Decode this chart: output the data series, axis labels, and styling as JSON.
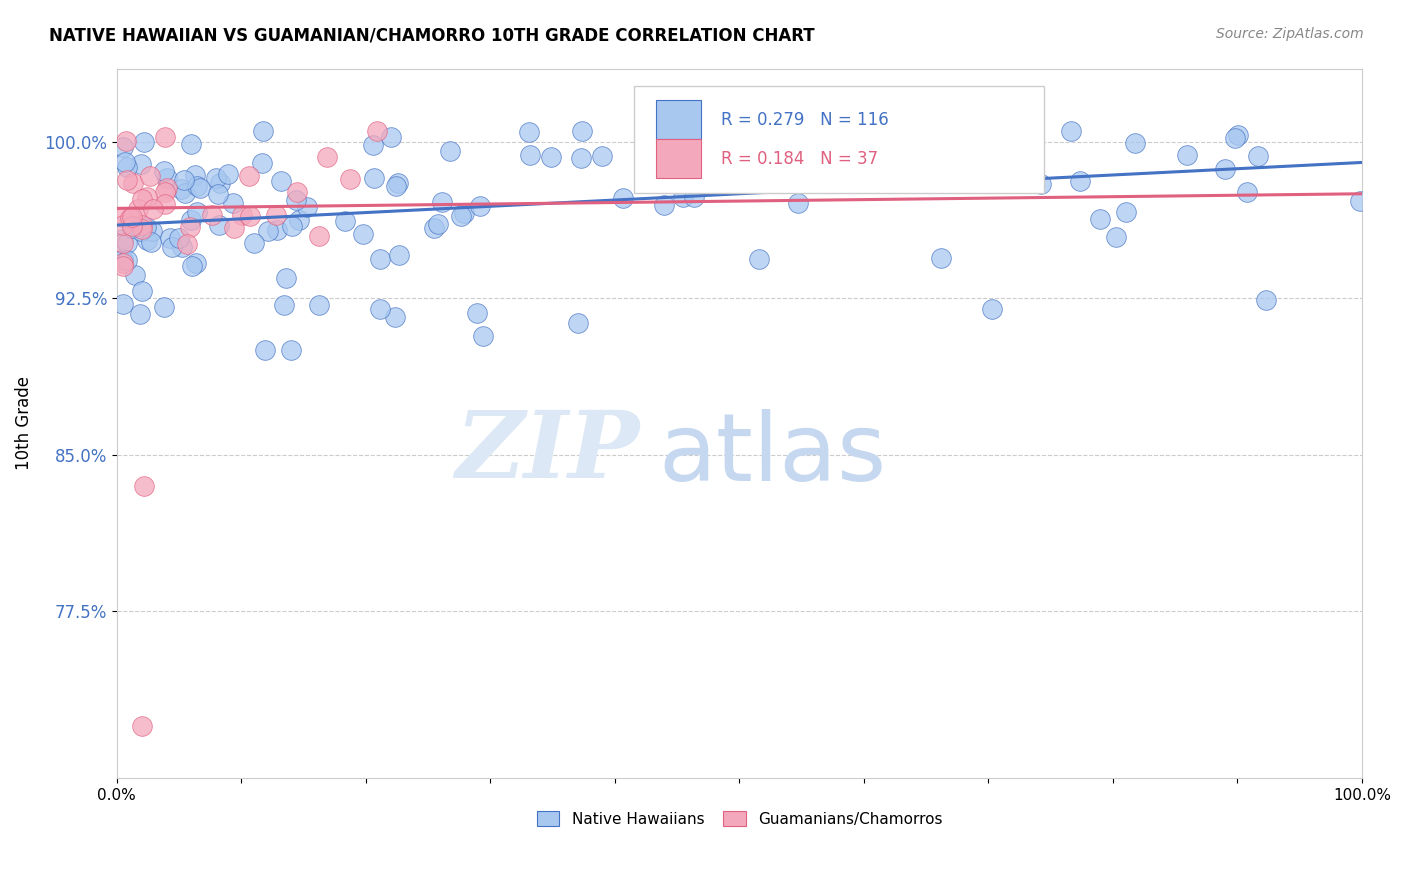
{
  "title": "NATIVE HAWAIIAN VS GUAMANIAN/CHAMORRO 10TH GRADE CORRELATION CHART",
  "source_text": "Source: ZipAtlas.com",
  "ylabel": "10th Grade",
  "xlim": [
    0.0,
    1.0
  ],
  "ylim": [
    0.695,
    1.035
  ],
  "yticks": [
    0.775,
    0.85,
    0.925,
    1.0
  ],
  "ytick_labels": [
    "77.5%",
    "85.0%",
    "92.5%",
    "100.0%"
  ],
  "xticks": [
    0.0,
    0.1,
    0.2,
    0.3,
    0.4,
    0.5,
    0.6,
    0.7,
    0.8,
    0.9,
    1.0
  ],
  "xtick_labels": [
    "0.0%",
    "",
    "",
    "",
    "",
    "",
    "",
    "",
    "",
    "",
    "100.0%"
  ],
  "r_blue": 0.279,
  "n_blue": 116,
  "r_pink": 0.184,
  "n_pink": 37,
  "blue_color": "#A8C8F0",
  "pink_color": "#F4A8BC",
  "blue_line_color": "#4472C4",
  "pink_line_color": "#E06080",
  "legend_label_blue": "Native Hawaiians",
  "legend_label_pink": "Guamanians/Chamorros",
  "watermark_zip": "ZIP",
  "watermark_atlas": "atlas",
  "blue_trend_x0": 0.0,
  "blue_trend_y0": 0.96,
  "blue_trend_x1": 1.0,
  "blue_trend_y1": 0.99,
  "pink_trend_x0": 0.0,
  "pink_trend_y0": 0.968,
  "pink_trend_x1": 1.0,
  "pink_trend_y1": 0.975
}
